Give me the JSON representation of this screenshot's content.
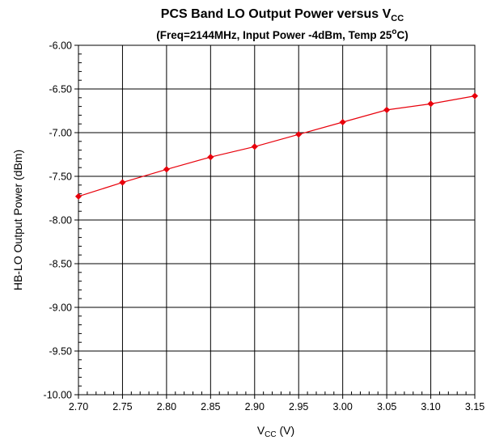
{
  "chart_data": {
    "type": "line",
    "title": {
      "main": "PCS Band LO Output Power versus V",
      "main_sub": "CC"
    },
    "subtitle": {
      "before": "(Freq=2144MHz, Input Power -4dBm, Temp 25",
      "sup": "o",
      "after": "C)"
    },
    "xlabel": {
      "main": "V",
      "sub": "CC",
      "after": " (V)"
    },
    "ylabel": "HB-LO Output Power (dBm)",
    "xlim": [
      2.7,
      3.15
    ],
    "ylim": [
      -10.0,
      -6.0
    ],
    "x_ticks": [
      "2.70",
      "2.75",
      "2.80",
      "2.85",
      "2.90",
      "2.95",
      "3.00",
      "3.05",
      "3.10",
      "3.15"
    ],
    "y_ticks": [
      "-6.00",
      "-6.50",
      "-7.00",
      "-7.50",
      "-8.00",
      "-8.50",
      "-9.00",
      "-9.50",
      "-10.00"
    ],
    "grid": true,
    "series": [
      {
        "color": "#e8000b",
        "marker": "diamond",
        "x": [
          2.7,
          2.75,
          2.8,
          2.85,
          2.9,
          2.95,
          3.0,
          3.05,
          3.1,
          3.15
        ],
        "y": [
          -7.73,
          -7.57,
          -7.42,
          -7.28,
          -7.16,
          -7.02,
          -6.88,
          -6.74,
          -6.67,
          -6.58
        ]
      }
    ]
  }
}
